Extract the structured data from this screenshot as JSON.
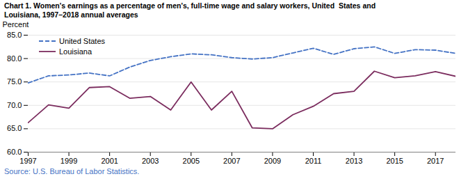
{
  "chart_data": {
    "type": "line",
    "title": "Chart 1. Women's earnings as a percentage of men's, full-time wage and salary workers, United  States and\nLouisiana, 1997–2018 annual averages",
    "y_label": "Percent",
    "source": "Source: U.S. Bureau of Labor Statistics.",
    "x": [
      1997,
      1998,
      1999,
      2000,
      2001,
      2002,
      2003,
      2004,
      2005,
      2006,
      2007,
      2008,
      2009,
      2010,
      2011,
      2012,
      2013,
      2014,
      2015,
      2016,
      2017,
      2018
    ],
    "series": [
      {
        "name": "United States",
        "color": "#4472C4",
        "line_style": "dashed",
        "values": [
          74.8,
          76.3,
          76.5,
          76.9,
          76.3,
          78.2,
          79.6,
          80.4,
          81.0,
          80.8,
          80.2,
          79.9,
          80.2,
          81.2,
          82.2,
          80.9,
          82.1,
          82.5,
          81.1,
          81.9,
          81.8,
          81.1
        ]
      },
      {
        "name": "Louisiana",
        "color": "#7B2C5E",
        "line_style": "solid",
        "values": [
          66.3,
          70.1,
          69.4,
          73.8,
          74.0,
          71.5,
          71.9,
          69.0,
          75.0,
          69.0,
          73.0,
          65.2,
          65.0,
          68.0,
          69.8,
          72.5,
          73.0,
          77.3,
          75.9,
          76.3,
          77.2,
          76.2
        ]
      }
    ],
    "xlim": [
      1997,
      2018
    ],
    "xticks": [
      1997,
      1999,
      2001,
      2003,
      2005,
      2007,
      2009,
      2011,
      2013,
      2015,
      2017
    ],
    "ylim": [
      60.0,
      85.0
    ],
    "yticks": [
      {
        "value": 60,
        "label": "60.0"
      },
      {
        "value": 65,
        "label": "65.0"
      },
      {
        "value": 70,
        "label": "70.0"
      },
      {
        "value": 75,
        "label": "75.0"
      },
      {
        "value": 80,
        "label": "80.0"
      },
      {
        "value": 85,
        "label": "85.0"
      }
    ],
    "grid": true,
    "legend": "upper left"
  }
}
